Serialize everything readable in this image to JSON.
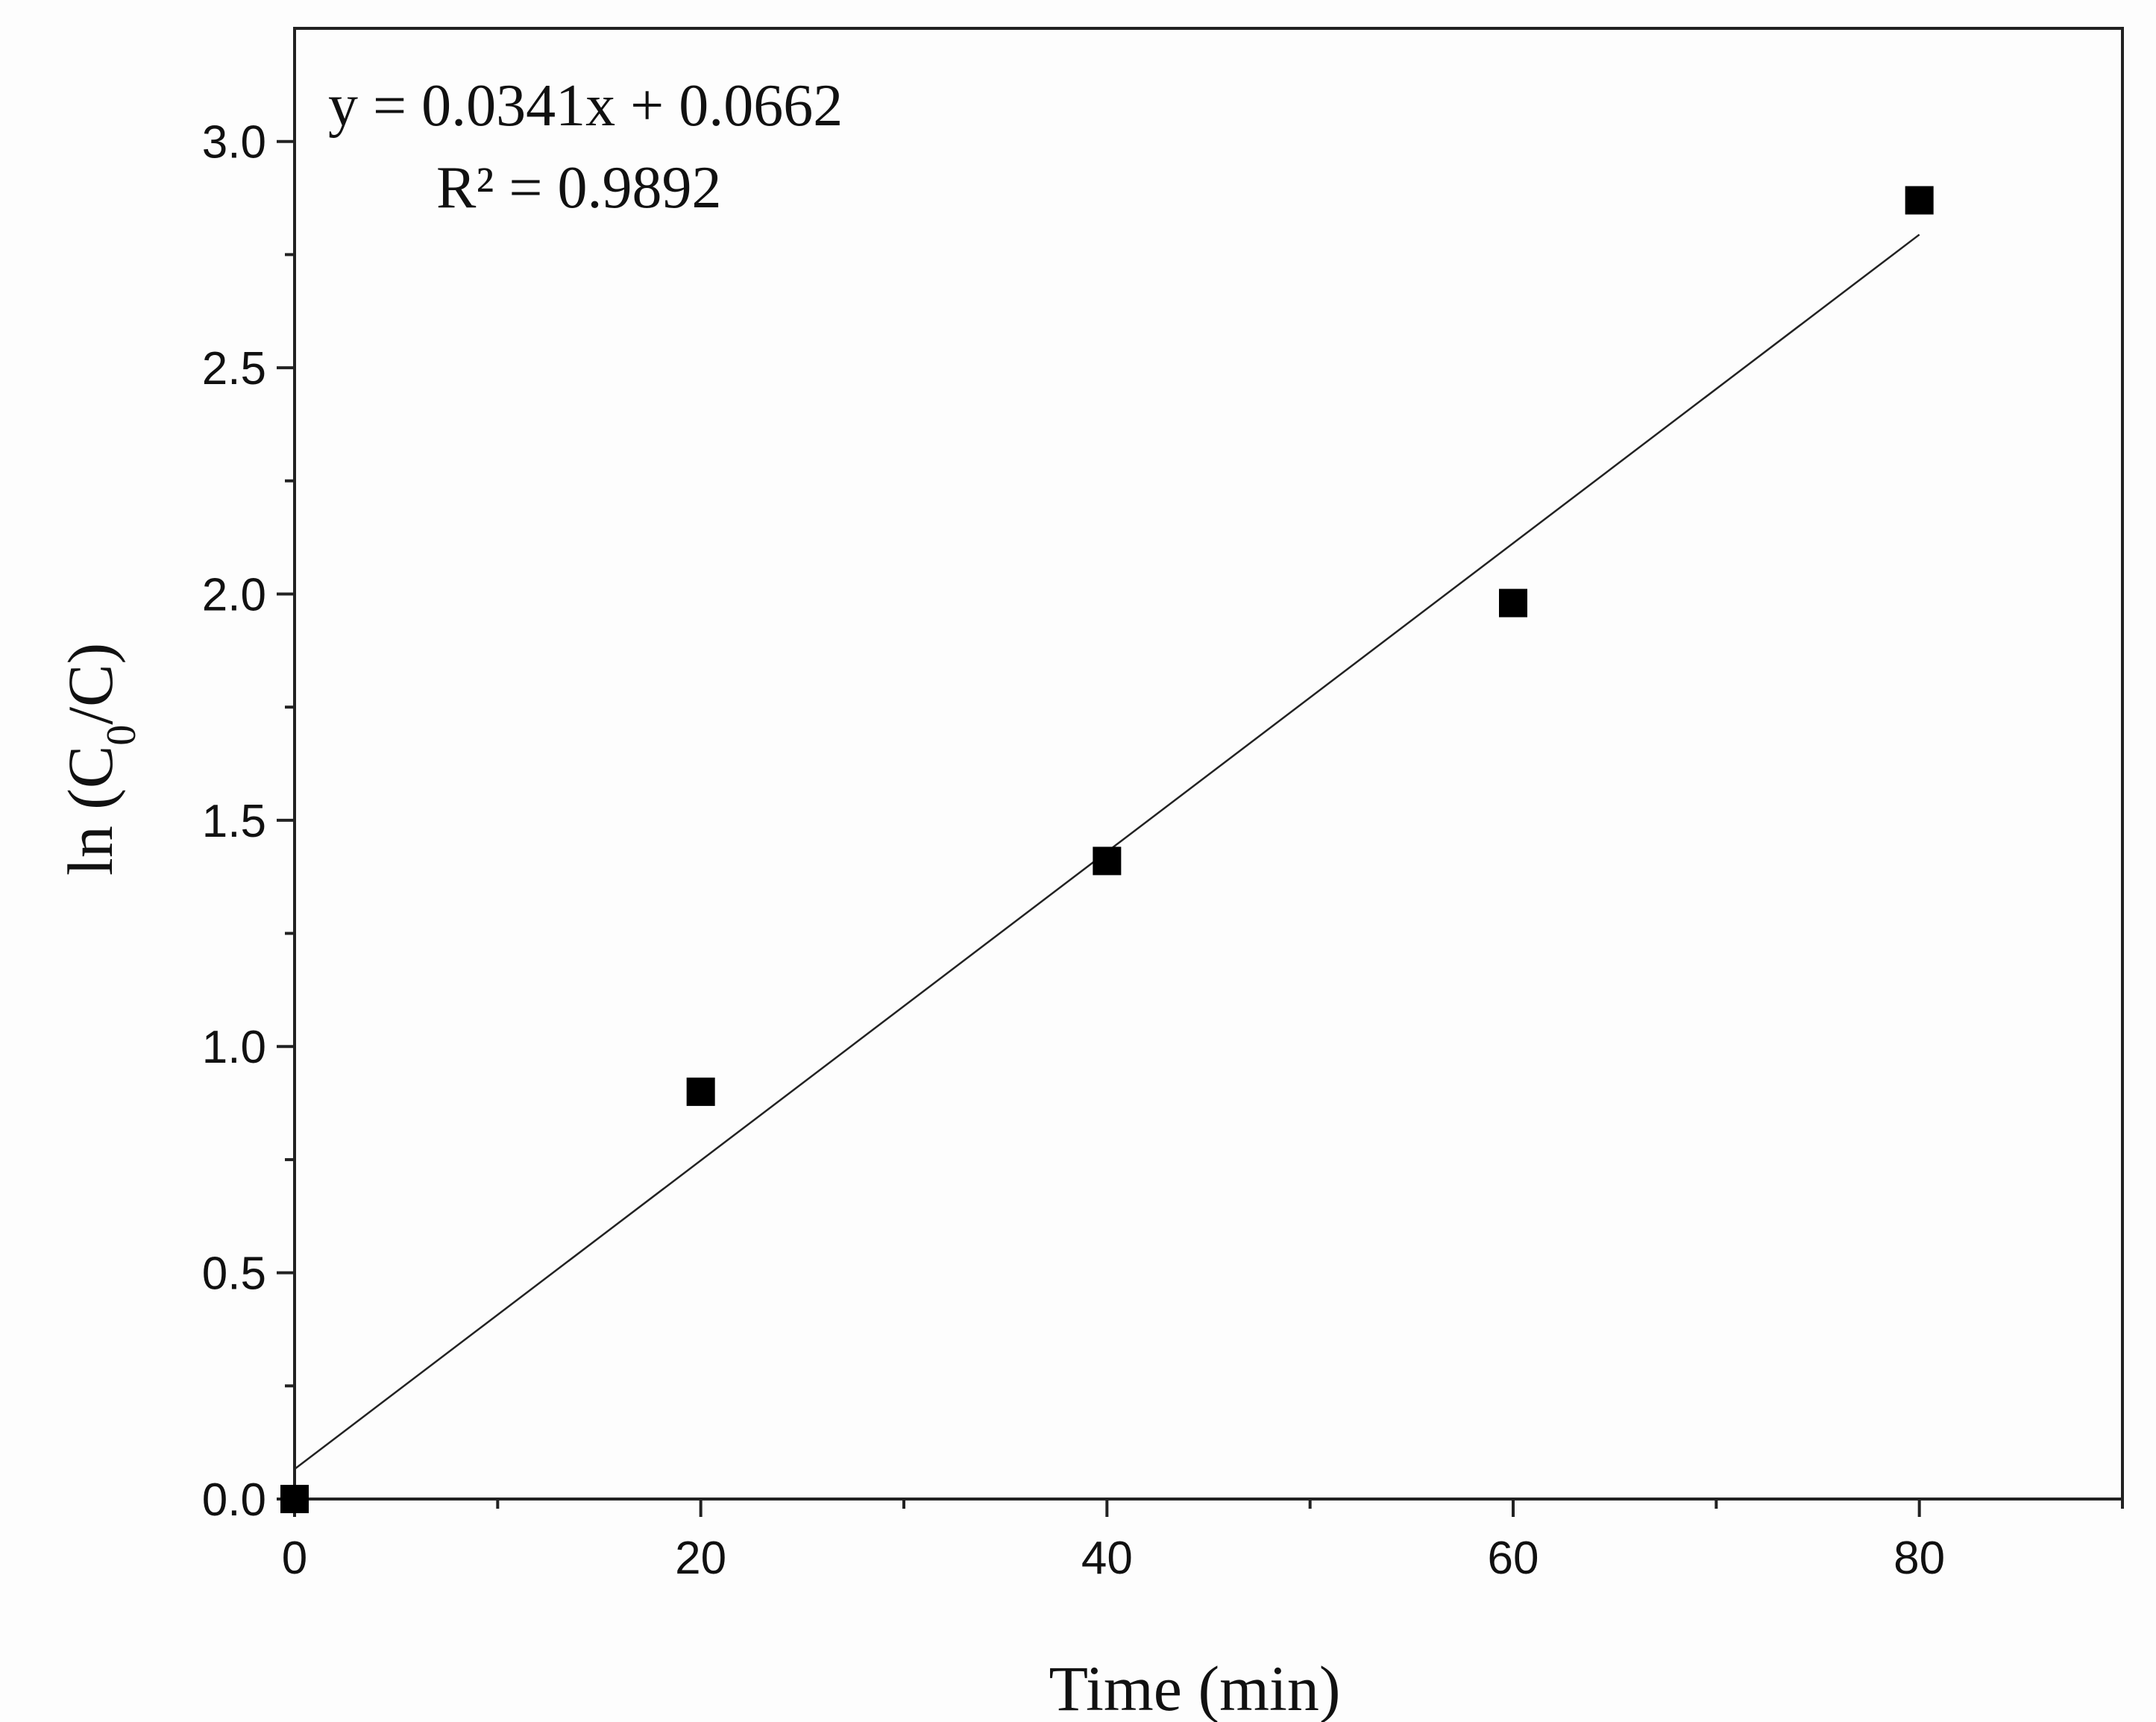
{
  "chart_data": {
    "type": "scatter",
    "title": "",
    "xlabel": "Time (min)",
    "ylabel": {
      "prefix": "ln (C",
      "subscript": "0",
      "suffix": "/C)"
    },
    "xlim": [
      0,
      90
    ],
    "ylim": [
      0,
      3.25
    ],
    "x_ticks": [
      0,
      20,
      40,
      60,
      80
    ],
    "x_tick_labels": [
      "0",
      "20",
      "40",
      "60",
      "80"
    ],
    "x_minor_ticks": [
      10,
      30,
      50,
      70,
      90
    ],
    "y_ticks": [
      0,
      0.5,
      1.0,
      1.5,
      2.0,
      2.5,
      3.0
    ],
    "y_tick_labels": [
      "0.0",
      "0.5",
      "1.0",
      "1.5",
      "2.0",
      "2.5",
      "3.0"
    ],
    "y_minor_ticks": [
      0.25,
      0.75,
      1.25,
      1.75,
      2.25,
      2.75
    ],
    "series": [
      {
        "name": "data",
        "marker": "square",
        "x": [
          0,
          20,
          40,
          60,
          80
        ],
        "y": [
          0,
          0.9,
          1.41,
          1.98,
          2.87
        ]
      }
    ],
    "fit": {
      "slope": 0.0341,
      "intercept": 0.0662,
      "x_range": [
        0,
        80
      ]
    },
    "annotations": {
      "equation": "y = 0.0341x + 0.0662",
      "r_squared": "R² = 0.9892"
    },
    "grid": false,
    "colors": {
      "marker": "#000000",
      "line": "#222222",
      "axis": "#222222",
      "background": "#fdfdfd"
    }
  }
}
